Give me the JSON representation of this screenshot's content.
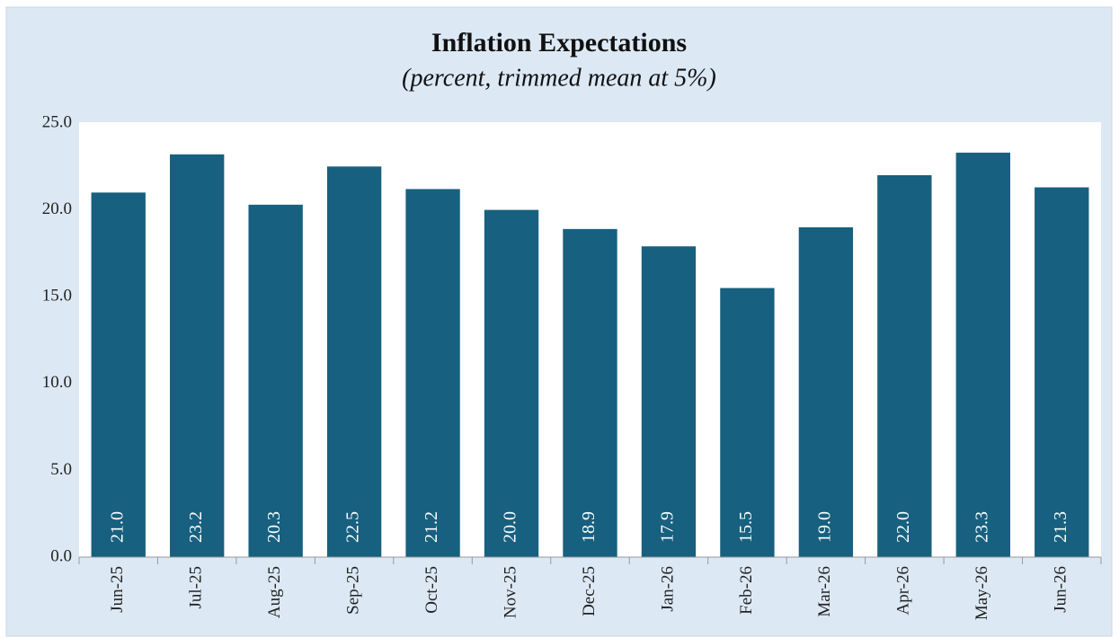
{
  "chart_data": {
    "type": "bar",
    "title": "Inflation Expectations",
    "subtitle": "(percent, trimmed mean at 5%)",
    "categories": [
      "Jun-25",
      "Jul-25",
      "Aug-25",
      "Sep-25",
      "Oct-25",
      "Nov-25",
      "Dec-25",
      "Jan-26",
      "Feb-26",
      "Mar-26",
      "Apr-26",
      "May-26",
      "Jun-26"
    ],
    "values": [
      21.0,
      23.2,
      20.3,
      22.5,
      21.2,
      20.0,
      18.9,
      17.9,
      15.5,
      19.0,
      22.0,
      23.3,
      21.3
    ],
    "value_labels": [
      "21.0",
      "23.2",
      "20.3",
      "22.5",
      "21.2",
      "20.0",
      "18.9",
      "17.9",
      "15.5",
      "19.0",
      "22.0",
      "23.3",
      "21.3"
    ],
    "color": "#17607f",
    "ylim": [
      0,
      25
    ],
    "yticks": [
      {
        "value": 0,
        "label": "0.0"
      },
      {
        "value": 5,
        "label": "5.0"
      },
      {
        "value": 10,
        "label": "10.0"
      },
      {
        "value": 15,
        "label": "15.0"
      },
      {
        "value": 20,
        "label": "20.0"
      },
      {
        "value": 25,
        "label": "25.0"
      }
    ],
    "grid": false
  }
}
